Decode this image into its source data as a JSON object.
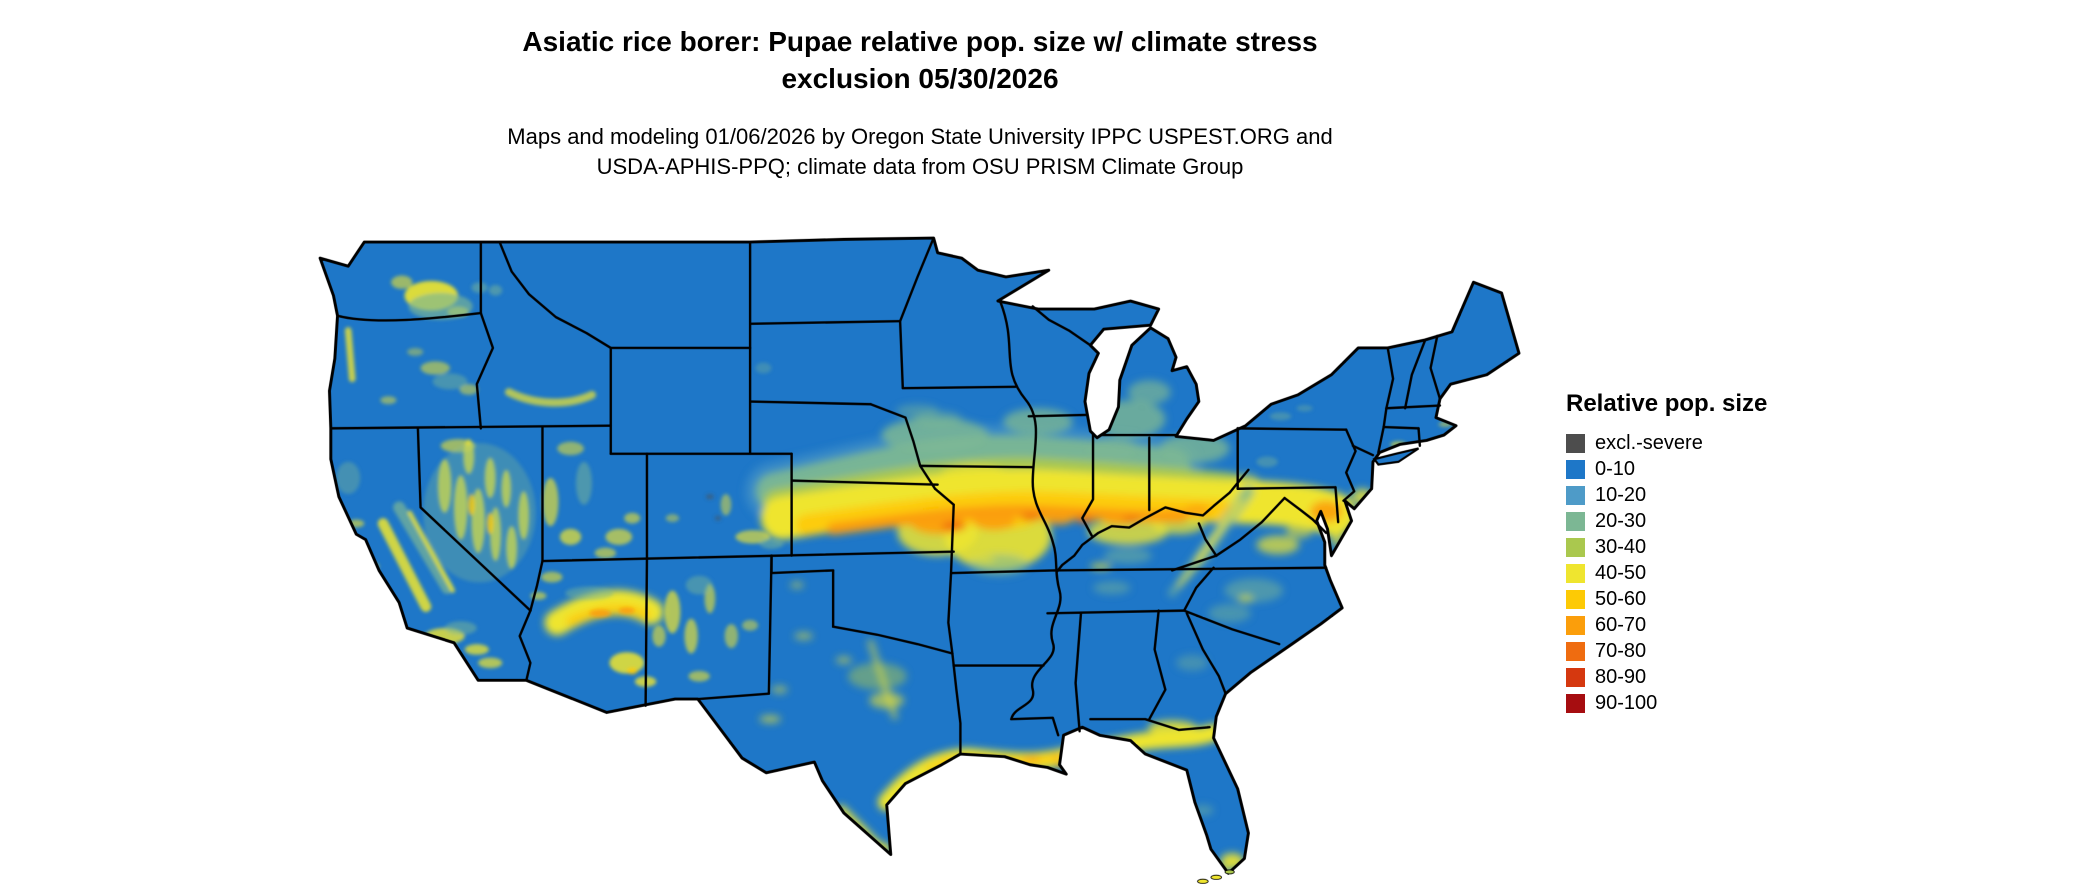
{
  "header": {
    "title_line1": "Asiatic rice borer: Pupae relative pop. size w/ climate stress",
    "title_line2": "exclusion 05/30/2026",
    "subtitle_line1": "Maps and modeling 01/06/2026 by Oregon State University IPPC USPEST.ORG and",
    "subtitle_line2": "USDA-APHIS-PPQ; climate data from OSU PRISM Climate Group"
  },
  "map": {
    "name": "continental-united-states",
    "base_color": "#1e77c8"
  },
  "legend": {
    "title": "Relative pop. size",
    "items": [
      {
        "label": "excl.-severe",
        "color": "#4d4d4d"
      },
      {
        "label": "0-10",
        "color": "#1e77c8"
      },
      {
        "label": "10-20",
        "color": "#4e9bc8"
      },
      {
        "label": "20-30",
        "color": "#7cb794"
      },
      {
        "label": "30-40",
        "color": "#aac84e"
      },
      {
        "label": "40-50",
        "color": "#efe52f"
      },
      {
        "label": "50-60",
        "color": "#fdca05"
      },
      {
        "label": "60-70",
        "color": "#fb9e0b"
      },
      {
        "label": "70-80",
        "color": "#ef6c10"
      },
      {
        "label": "80-90",
        "color": "#d5380f"
      },
      {
        "label": "90-100",
        "color": "#a60d10"
      }
    ]
  }
}
